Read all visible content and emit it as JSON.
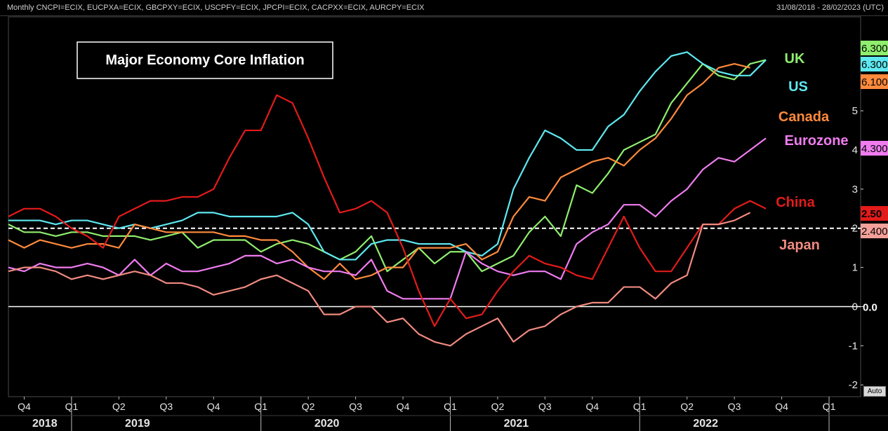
{
  "header": {
    "tickers": "Monthly CNCPI=ECIX, EUCPXA=ECIX, GBCPXY=ECIX, USCPFY=ECIX, JPCPI=ECIX, CACPXX=ECIX, AURCPY=ECIX",
    "range": "31/08/2018 - 28/02/2023 (UTC)"
  },
  "auto_label": "Auto",
  "chart_data": {
    "type": "line",
    "title": "Major Economy Core Inflation",
    "ylim": [
      -2.3,
      7.4
    ],
    "yticks": [
      -2,
      -1,
      0,
      1,
      2,
      3,
      4,
      5
    ],
    "ytick_labels": [
      "-2",
      "-1",
      "0",
      "1",
      "2",
      "3",
      "4",
      "5"
    ],
    "zero_label": "0.0",
    "reference_line": 2,
    "quarter_ticks": [
      "Q4",
      "Q1",
      "Q2",
      "Q3",
      "Q4",
      "Q1",
      "Q2",
      "Q3",
      "Q4",
      "Q1",
      "Q2",
      "Q3",
      "Q4",
      "Q1",
      "Q2",
      "Q3",
      "Q4",
      "Q1"
    ],
    "quarter_months": [
      1,
      4,
      7,
      10,
      13,
      16,
      19,
      22,
      25,
      28,
      31,
      34,
      37,
      40,
      43,
      46,
      49,
      52
    ],
    "years": [
      "2018",
      "2019",
      "2020",
      "2021",
      "2022"
    ],
    "year_months": [
      1,
      8,
      20,
      32,
      44
    ],
    "x_start": "2018-09",
    "x_end": "2023-02",
    "series": [
      {
        "name": "UK",
        "color": "#8fee6e",
        "last_label": "6.300",
        "values": [
          2.1,
          1.9,
          1.9,
          1.8,
          1.9,
          1.9,
          1.8,
          1.8,
          1.8,
          1.7,
          1.8,
          1.9,
          1.5,
          1.7,
          1.7,
          1.7,
          1.4,
          1.6,
          1.7,
          1.6,
          1.4,
          1.2,
          1.4,
          1.8,
          0.9,
          1.2,
          1.5,
          1.1,
          1.4,
          1.4,
          0.9,
          1.1,
          1.3,
          1.9,
          2.3,
          1.8,
          3.1,
          2.9,
          3.4,
          4.0,
          4.2,
          4.4,
          5.2,
          5.7,
          6.2,
          5.9,
          5.8,
          6.2,
          6.3
        ]
      },
      {
        "name": "US",
        "color": "#5ee8f0",
        "last_label": "6.300",
        "values": [
          2.2,
          2.2,
          2.2,
          2.1,
          2.2,
          2.2,
          2.1,
          2.0,
          2.1,
          2.0,
          2.1,
          2.2,
          2.4,
          2.4,
          2.3,
          2.3,
          2.3,
          2.3,
          2.4,
          2.1,
          1.4,
          1.2,
          1.2,
          1.6,
          1.7,
          1.7,
          1.6,
          1.6,
          1.6,
          1.4,
          1.3,
          1.6,
          3.0,
          3.8,
          4.5,
          4.3,
          4.0,
          4.0,
          4.6,
          4.9,
          5.5,
          6.0,
          6.4,
          6.5,
          6.2,
          6.0,
          5.9,
          5.9,
          6.3
        ]
      },
      {
        "name": "Canada",
        "color": "#ff8a3c",
        "last_label": "6.100",
        "values": [
          1.7,
          1.5,
          1.7,
          1.6,
          1.5,
          1.6,
          1.6,
          1.5,
          2.1,
          2.0,
          1.9,
          1.9,
          1.9,
          1.9,
          1.8,
          1.8,
          1.7,
          1.7,
          1.4,
          1.0,
          0.7,
          1.1,
          0.7,
          0.8,
          1.0,
          1.0,
          1.5,
          1.5,
          1.5,
          1.6,
          1.2,
          1.4,
          2.3,
          2.8,
          2.7,
          3.3,
          3.5,
          3.7,
          3.8,
          3.6,
          4.0,
          4.3,
          4.8,
          5.4,
          5.7,
          6.1,
          6.2,
          6.1
        ]
      },
      {
        "name": "Eurozone",
        "color": "#f07cf0",
        "last_label": "4.300",
        "values": [
          1.0,
          0.9,
          1.1,
          1.0,
          1.0,
          1.1,
          1.0,
          0.8,
          1.2,
          0.8,
          1.1,
          0.9,
          0.9,
          1.0,
          1.1,
          1.3,
          1.3,
          1.1,
          1.2,
          1.0,
          0.9,
          0.9,
          0.8,
          1.2,
          0.4,
          0.2,
          0.2,
          0.2,
          0.2,
          1.4,
          1.1,
          0.9,
          0.8,
          0.9,
          0.9,
          0.7,
          1.6,
          1.9,
          2.1,
          2.6,
          2.6,
          2.3,
          2.7,
          3.0,
          3.5,
          3.8,
          3.7,
          4.0,
          4.3
        ]
      },
      {
        "name": "China",
        "color": "#e31b1b",
        "last_label": "2.50",
        "values": [
          2.3,
          2.5,
          2.5,
          2.3,
          2.0,
          1.8,
          1.5,
          2.3,
          2.5,
          2.7,
          2.7,
          2.8,
          2.8,
          3.0,
          3.8,
          4.5,
          4.5,
          5.4,
          5.2,
          4.3,
          3.3,
          2.4,
          2.5,
          2.7,
          2.4,
          1.5,
          0.4,
          -0.5,
          0.2,
          -0.3,
          -0.2,
          0.4,
          0.9,
          1.3,
          1.1,
          1.0,
          0.8,
          0.7,
          1.5,
          2.3,
          1.5,
          0.9,
          0.9,
          1.5,
          2.1,
          2.1,
          2.5,
          2.7,
          2.5
        ]
      },
      {
        "name": "Japan",
        "color": "#f08a80",
        "last_label": "2.400",
        "values": [
          0.9,
          1.0,
          1.0,
          0.9,
          0.7,
          0.8,
          0.7,
          0.8,
          0.9,
          0.8,
          0.6,
          0.6,
          0.5,
          0.3,
          0.4,
          0.5,
          0.7,
          0.8,
          0.6,
          0.4,
          -0.2,
          -0.2,
          0.0,
          0.0,
          -0.4,
          -0.3,
          -0.7,
          -0.9,
          -1.0,
          -0.7,
          -0.5,
          -0.3,
          -0.9,
          -0.6,
          -0.5,
          -0.2,
          0.0,
          0.1,
          0.1,
          0.5,
          0.5,
          0.2,
          0.6,
          0.8,
          2.1,
          2.1,
          2.2,
          2.4
        ]
      }
    ]
  }
}
